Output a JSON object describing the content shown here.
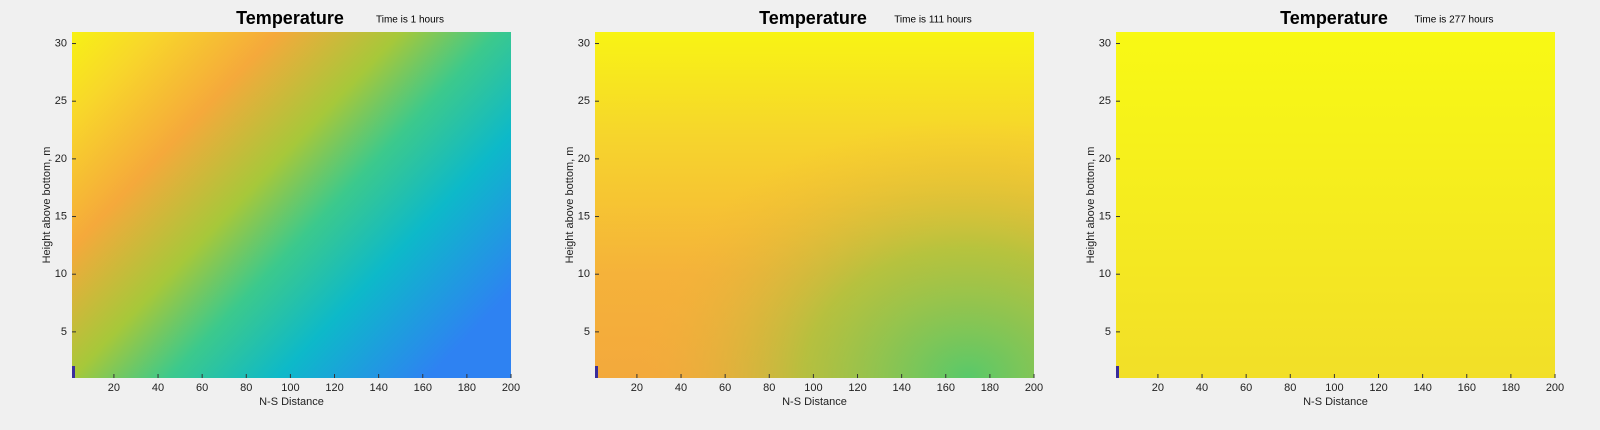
{
  "chart_data": [
    {
      "type": "heatmap",
      "title": "Temperature",
      "annotation": "Time is 1 hours",
      "xlabel": "N-S Distance",
      "ylabel": "Height above bottom, m",
      "xlim": [
        1,
        200
      ],
      "ylim": [
        1,
        31
      ],
      "xticks": [
        20,
        40,
        60,
        80,
        100,
        120,
        140,
        160,
        180,
        200
      ],
      "yticks": [
        5,
        10,
        15,
        20,
        25,
        30
      ]
    },
    {
      "type": "heatmap",
      "title": "Temperature",
      "annotation": "Time is 111 hours",
      "xlabel": "N-S Distance",
      "ylabel": "Height above bottom, m",
      "xlim": [
        1,
        200
      ],
      "ylim": [
        1,
        31
      ],
      "xticks": [
        20,
        40,
        60,
        80,
        100,
        120,
        140,
        160,
        180,
        200
      ],
      "yticks": [
        5,
        10,
        15,
        20,
        25,
        30
      ]
    },
    {
      "type": "heatmap",
      "title": "Temperature",
      "annotation": "Time is 277 hours",
      "xlabel": "N-S Distance",
      "ylabel": "Height above bottom, m",
      "xlim": [
        1,
        200
      ],
      "ylim": [
        1,
        31
      ],
      "xticks": [
        20,
        40,
        60,
        80,
        100,
        120,
        140,
        160,
        180,
        200
      ],
      "yticks": [
        5,
        10,
        15,
        20,
        25,
        30
      ]
    }
  ]
}
